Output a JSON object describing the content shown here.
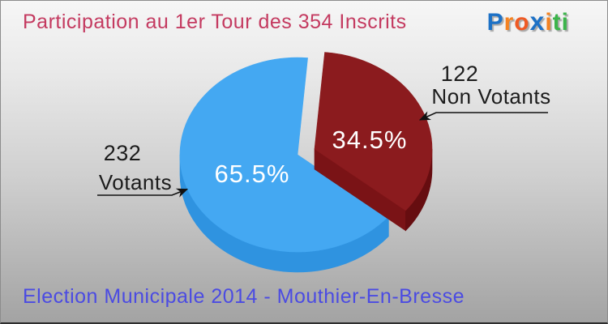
{
  "header": {
    "title": "Participation au 1er Tour des 354 Inscrits",
    "logo": {
      "name": "Proxiti",
      "letters": [
        {
          "ch": "P",
          "color": "#1d71c6"
        },
        {
          "ch": "r",
          "color": "#f58220"
        },
        {
          "ch": "o",
          "color": "#ef5a24"
        },
        {
          "ch": "x",
          "color": "#1d71c6"
        },
        {
          "ch": "i",
          "color": "#f58220"
        },
        {
          "ch": "t",
          "color": "#3cb44b"
        },
        {
          "ch": "i",
          "color": "#3cb44b"
        }
      ]
    }
  },
  "footer": {
    "caption": "Election Municipale 2014 - Mouthier-En-Bresse"
  },
  "chart_data": {
    "type": "pie",
    "title": "Participation au 1er Tour des 354 Inscrits",
    "total": 354,
    "total_label": "354 Inscrits",
    "legend_position": "none",
    "labels_style": "callout-with-arrow",
    "slices": [
      {
        "name": "Votants",
        "count": 232,
        "count_label": "232",
        "pct": 65.5,
        "pct_label": "65.5%",
        "color": "#44a8f2",
        "wall_color": "#2f93e0",
        "exploded": false
      },
      {
        "name": "Non Votants",
        "count": 122,
        "count_label": "122",
        "pct": 34.5,
        "pct_label": "34.5%",
        "color": "#8b1b1e",
        "wall_color": "#660d10",
        "cut_color": "#7a1316",
        "exploded": true
      }
    ]
  },
  "colors": {
    "title_text": "#c43a60",
    "footer_text": "#4b4be2",
    "label_text": "#1c1c1c",
    "arrow": "#111111",
    "background_top": "#f6f6f6",
    "background_bottom": "#a3a3a3"
  }
}
